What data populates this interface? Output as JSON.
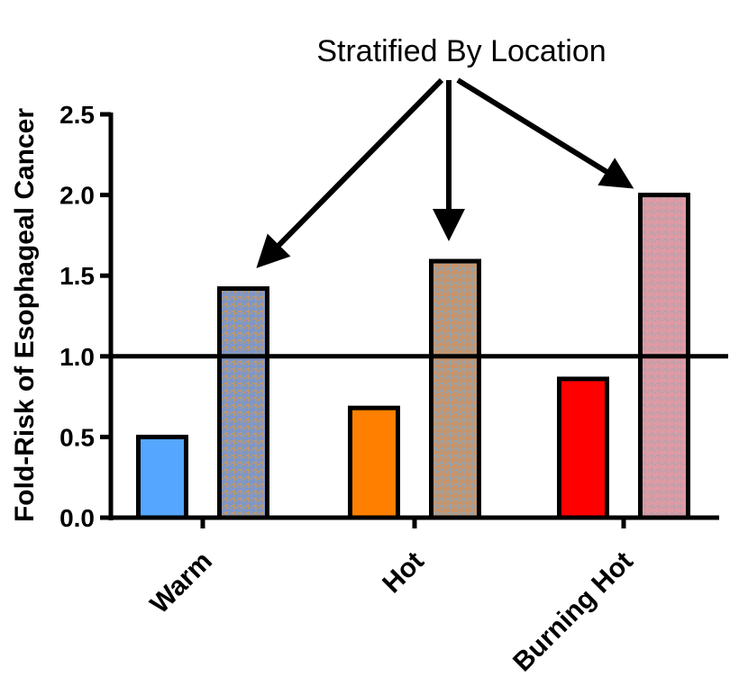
{
  "chart_data": {
    "type": "bar",
    "categories": [
      "Warm",
      "Hot",
      "Burning Hot"
    ],
    "series": [
      {
        "values": [
          0.5,
          0.68,
          0.86
        ]
      },
      {
        "values": [
          1.42,
          1.59,
          2.0
        ]
      }
    ],
    "colors": {
      "solid": [
        "#55a6ff",
        "#ff8000",
        "#ff0000"
      ],
      "hatched_base": [
        "#7f97c6",
        "#c5946d",
        "#e09aa3"
      ],
      "hatched_stroke": [
        "#c7985f",
        "#8fa6b6",
        "#b2a3b0"
      ]
    },
    "ylabel": "Fold-Risk of Esophageal  Cancer",
    "yticks": [
      "0.0",
      "0.5",
      "1.0",
      "1.5",
      "2.0",
      "2.5"
    ],
    "ytick_values": [
      0,
      0.5,
      1.0,
      1.5,
      2.0,
      2.5
    ],
    "ylim": [
      0,
      2.5
    ],
    "reference_line": 1.0,
    "annotation": "Stratified By Location",
    "grid": false,
    "legend": "none"
  }
}
